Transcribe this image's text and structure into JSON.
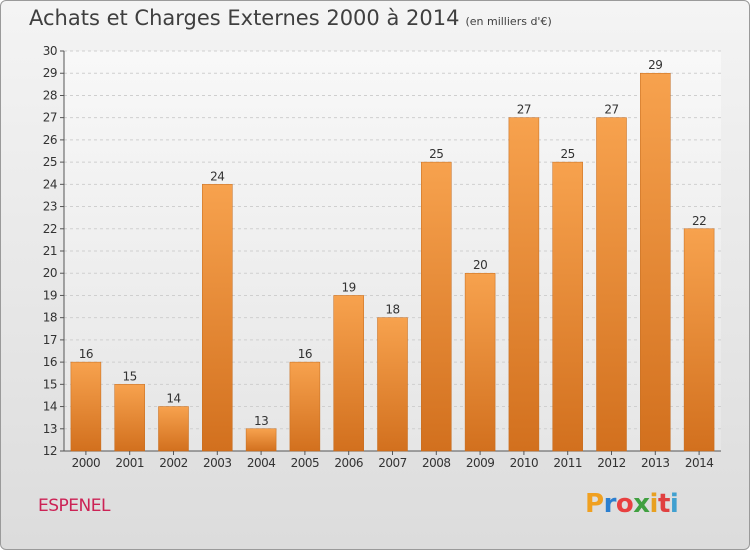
{
  "chart_data": {
    "type": "bar",
    "title": "Achats et Charges Externes 2000 à 2014",
    "unit_note": "(en milliers d'€)",
    "categories": [
      "2000",
      "2001",
      "2002",
      "2003",
      "2004",
      "2005",
      "2006",
      "2007",
      "2008",
      "2009",
      "2010",
      "2011",
      "2012",
      "2013",
      "2014"
    ],
    "values": [
      16,
      15,
      14,
      24,
      13,
      16,
      19,
      18,
      25,
      20,
      27,
      25,
      27,
      29,
      22
    ],
    "ylim": [
      12,
      30
    ],
    "yticks": [
      12,
      13,
      14,
      15,
      16,
      17,
      18,
      19,
      20,
      21,
      22,
      23,
      24,
      25,
      26,
      27,
      28,
      29,
      30
    ],
    "grid": true,
    "legend": "none",
    "colors": {
      "bar_light": "#f7a24e",
      "bar_dark": "#d2701e",
      "grid": "#cfcfcf",
      "axis": "#555555",
      "text": "#333333"
    }
  },
  "commune": "ESPENEL",
  "logo": {
    "letters": [
      "P",
      "r",
      "o",
      "x",
      "i",
      "t",
      "i"
    ],
    "colors": [
      "#f0a020",
      "#2b7fd0",
      "#e84040",
      "#40a040",
      "#e8a020",
      "#e04040",
      "#40a0d0"
    ]
  }
}
